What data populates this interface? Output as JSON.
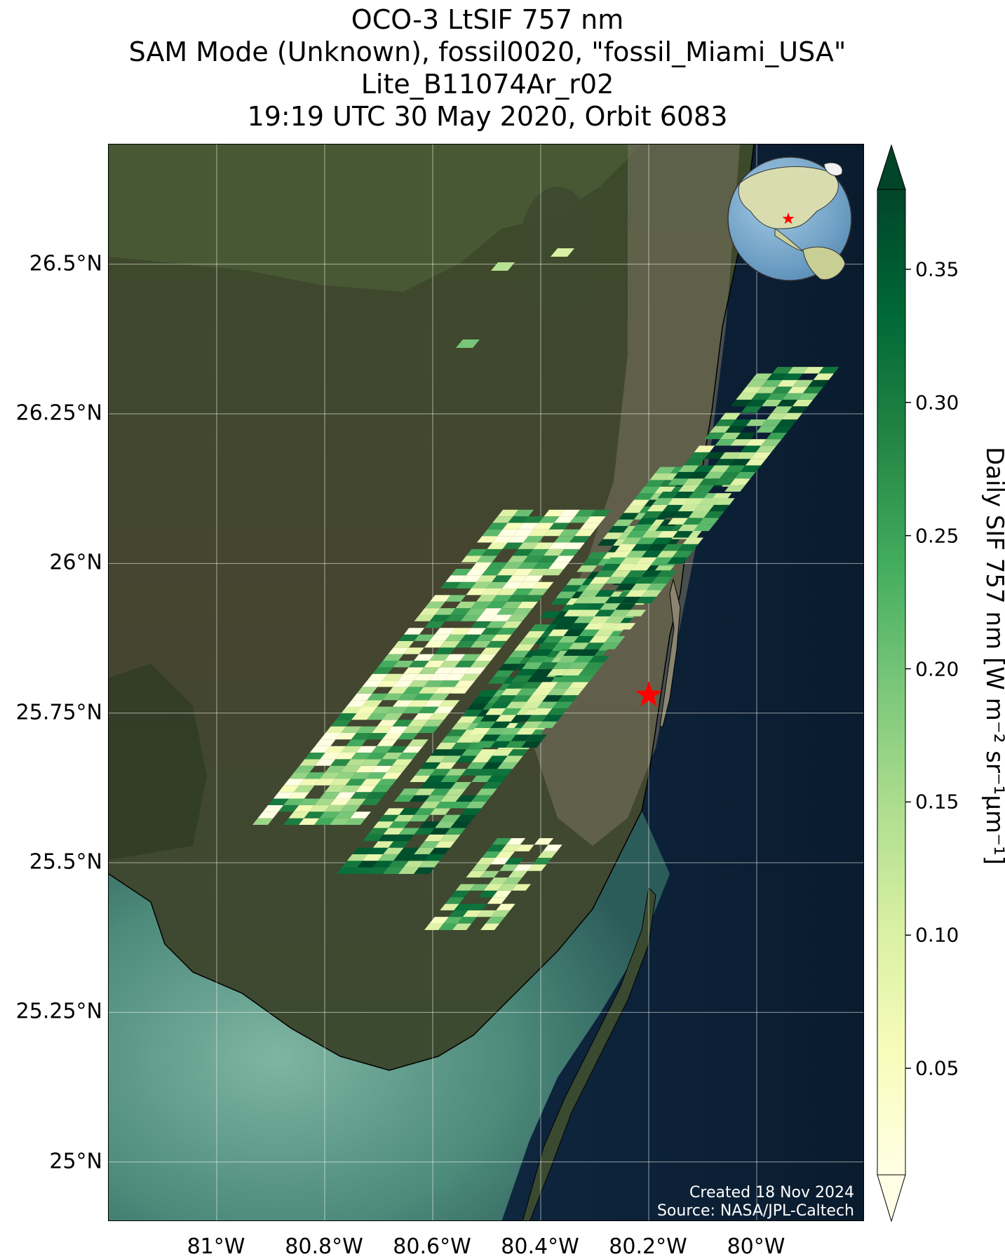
{
  "title": {
    "line1": "OCO-3 LtSIF 757 nm",
    "line2": "SAM Mode (Unknown), fossil0020, \"fossil_Miami_USA\"",
    "line3": "Lite_B11074Ar_r02",
    "line4": "19:19 UTC 30 May 2020, Orbit 6083"
  },
  "axes": {
    "y_ticks": [
      "26.5°N",
      "26.25°N",
      "26°N",
      "25.75°N",
      "25.5°N",
      "25.25°N",
      "25°N"
    ],
    "x_ticks": [
      "81°W",
      "80.8°W",
      "80.6°W",
      "80.4°W",
      "80.2°W",
      "80°W"
    ],
    "lat_values": [
      26.5,
      26.25,
      26.0,
      25.75,
      25.5,
      25.25,
      25.0
    ],
    "lon_values": [
      -81.0,
      -80.8,
      -80.6,
      -80.4,
      -80.2,
      -80.0
    ],
    "lat_range": [
      24.9,
      26.7
    ],
    "lon_range": [
      -81.2,
      -79.8
    ]
  },
  "colorbar": {
    "label": "Daily SIF 757 nm [W m⁻² sr⁻¹μm⁻¹]",
    "ticks": [
      "0.35",
      "0.30",
      "0.25",
      "0.20",
      "0.15",
      "0.10",
      "0.05"
    ],
    "tick_values": [
      0.35,
      0.3,
      0.25,
      0.2,
      0.15,
      0.1,
      0.05
    ],
    "range": [
      0.01,
      0.38
    ],
    "colormap": "YlGn",
    "extend": "both"
  },
  "target": {
    "name": "fossil_Miami_USA",
    "lat": 25.78,
    "lon": -80.2,
    "marker": "red-star",
    "color": "#ff0000"
  },
  "inset": {
    "type": "globe",
    "marker": "red-star"
  },
  "credits": {
    "created": "Created 18 Nov 2024",
    "source": "Source: NASA/JPL-Caltech"
  },
  "colors": {
    "land": "#3a4a2a",
    "ocean": "#0d1f33",
    "target": "#ff0000"
  }
}
